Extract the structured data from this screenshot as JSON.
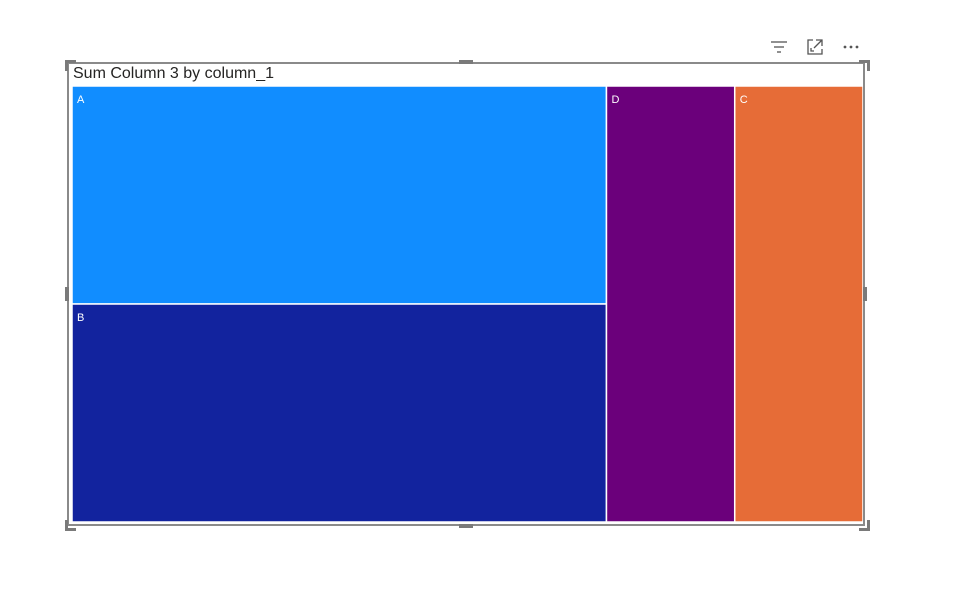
{
  "visual": {
    "title": "Sum Column 3 by column_1"
  },
  "toolbar": {
    "icons": [
      "filter-icon",
      "focus-mode-icon",
      "more-options-icon"
    ]
  },
  "chart_data": {
    "type": "treemap",
    "title": "Sum Column 3 by column_1",
    "categories": [
      "A",
      "B",
      "D",
      "C"
    ],
    "values": [
      25,
      25,
      12,
      12
    ],
    "colors": {
      "A": "#118DFF",
      "B": "#12239E",
      "D": "#6B007B",
      "C": "#E66C37"
    },
    "legend": "none"
  }
}
